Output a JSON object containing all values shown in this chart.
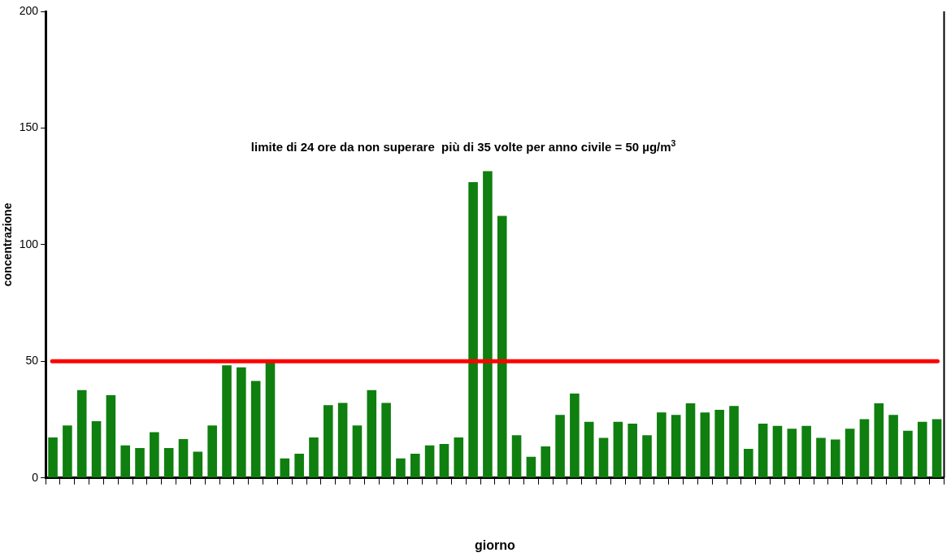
{
  "chart_data": {
    "type": "bar",
    "xlabel": "giorno",
    "ylabel": "concentrazione",
    "categories": [
      null,
      null,
      null,
      null,
      null,
      null,
      null,
      null,
      null,
      null,
      null,
      null,
      null,
      null,
      null,
      null,
      null,
      null,
      null,
      null,
      null,
      null,
      null,
      null,
      null,
      null,
      null,
      null,
      null,
      null,
      null,
      null,
      null,
      null,
      null,
      null,
      null,
      null,
      null,
      null,
      null,
      null,
      null,
      null,
      null,
      null,
      null,
      null,
      null,
      null,
      null,
      null,
      null,
      null,
      null,
      null,
      null,
      null,
      null,
      null,
      null,
      null
    ],
    "values": [
      17.4,
      22.5,
      37.7,
      24.3,
      35.5,
      14,
      12.8,
      19.6,
      12.8,
      16.7,
      11.3,
      22.5,
      48.3,
      47.4,
      41.6,
      50,
      8.4,
      10.4,
      17.4,
      31.2,
      32.2,
      22.5,
      37.7,
      32.2,
      8.4,
      10.4,
      14,
      14.6,
      17.4,
      126.8,
      131.5,
      112.3,
      18.3,
      9.1,
      13.5,
      27,
      36.2,
      24.1,
      17.2,
      24.1,
      23.3,
      18.3,
      28.1,
      27,
      32,
      28.1,
      29.2,
      30.9,
      12.5,
      23.3,
      22.3,
      21.1,
      22.3,
      17.2,
      16.5,
      21.1,
      25.2,
      32,
      27,
      20.2,
      24.1,
      25.2
    ],
    "color": "#0f7f0f",
    "ylim": [
      0,
      200
    ],
    "yticks": [
      0,
      50,
      100,
      150,
      200
    ],
    "grid": false,
    "legend": false,
    "annotations": [
      "limite di 24 ore da non superare  più di 35 volte per anno civile = 50 µg/m$^{3}$"
    ],
    "ref_lines": [
      {
        "axis": "y",
        "value": 50,
        "color": "#ff0000"
      }
    ]
  }
}
